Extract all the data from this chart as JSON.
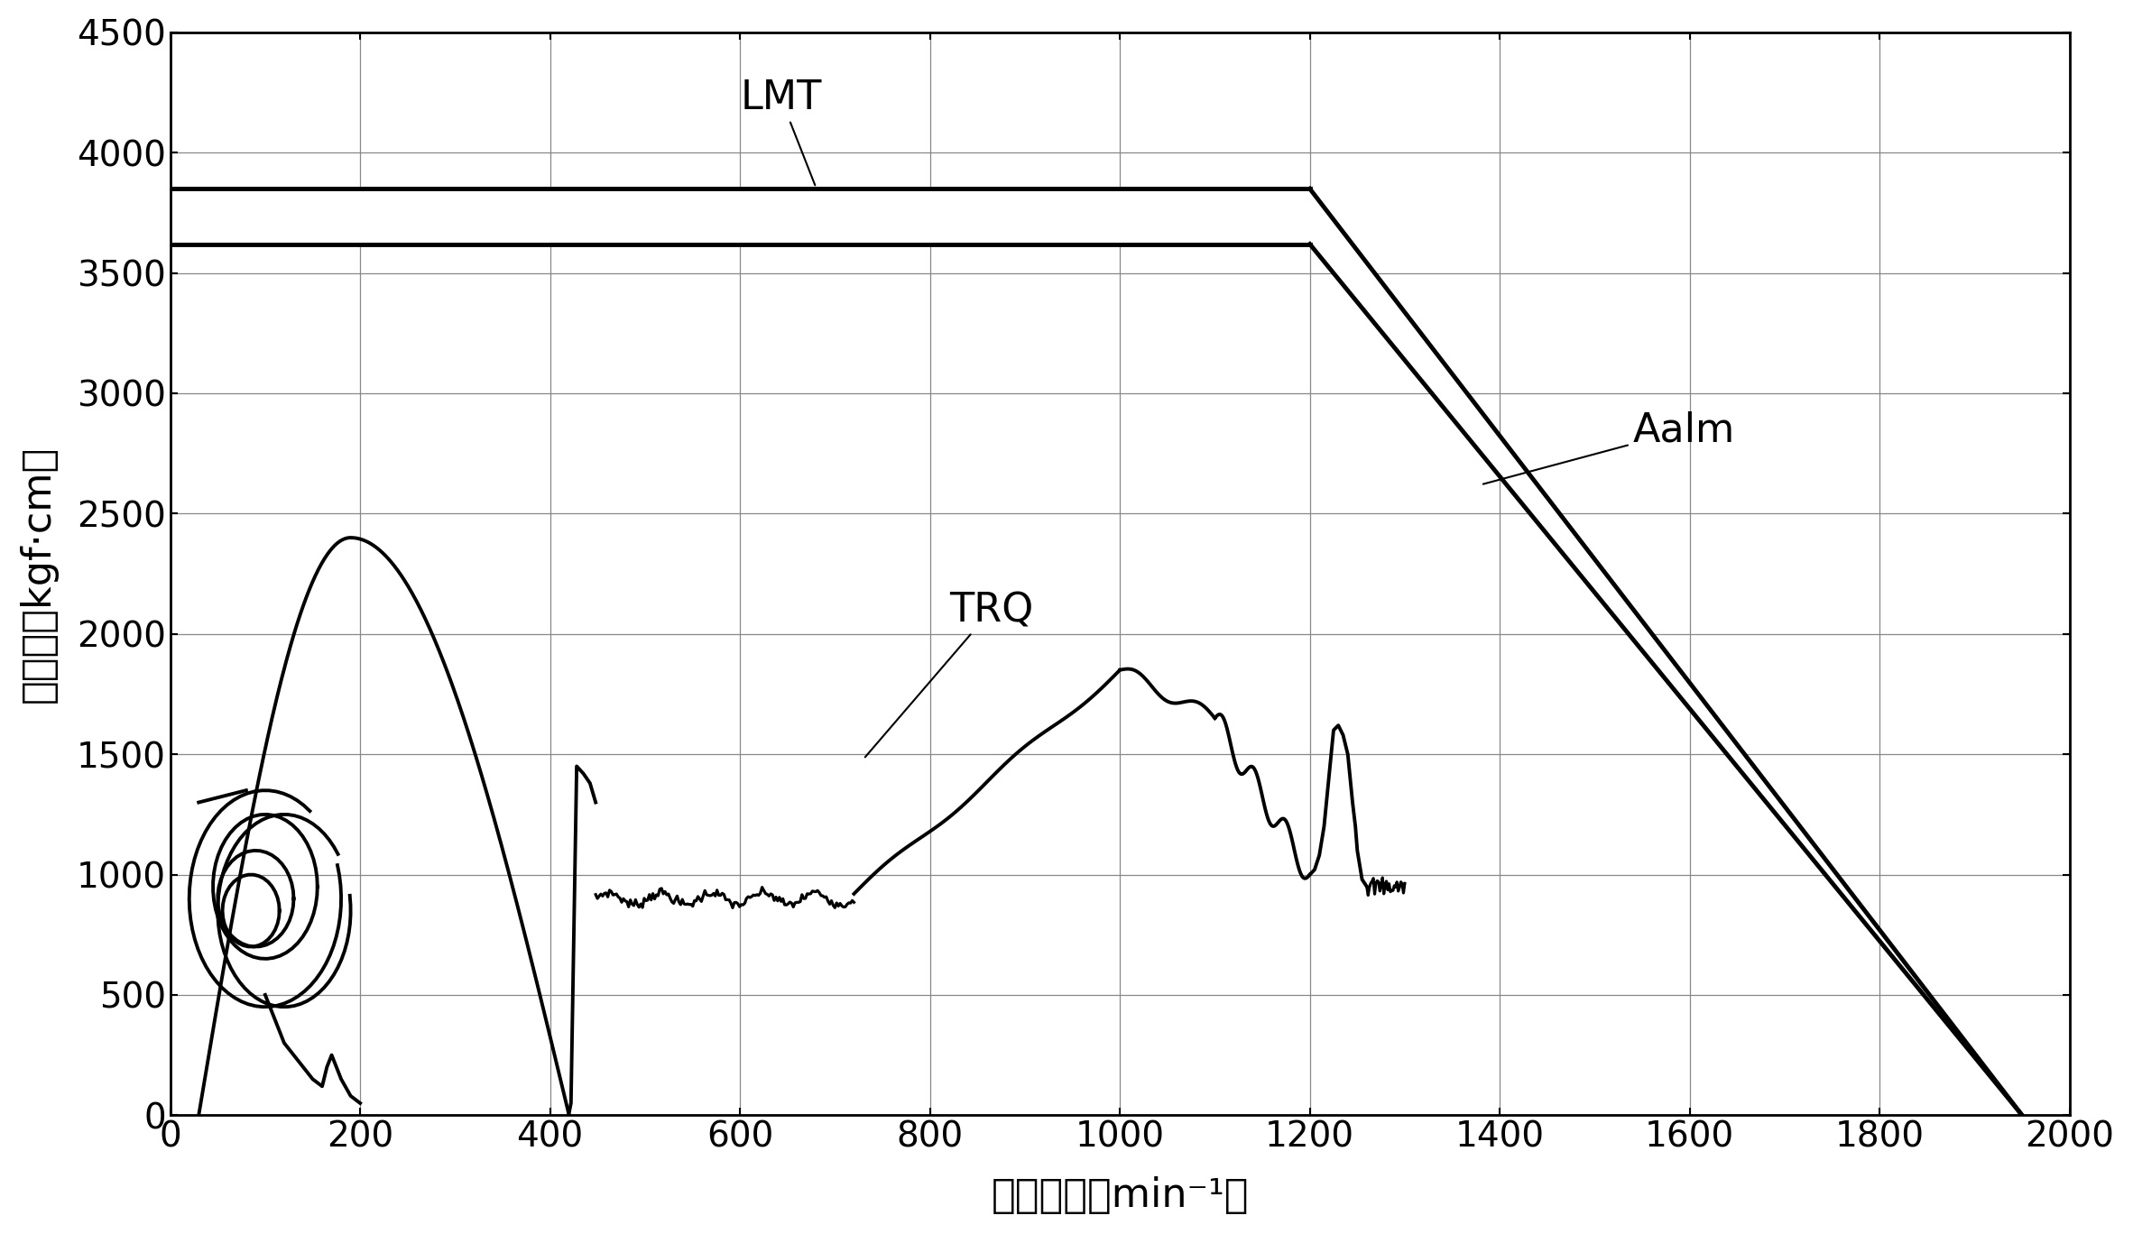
{
  "xlabel": "旋转速度［min⁻¹］",
  "ylabel": "转矩　［kgf·cm］",
  "xlim": [
    0,
    2000
  ],
  "ylim": [
    0,
    4500
  ],
  "xticks": [
    0,
    200,
    400,
    600,
    800,
    1000,
    1200,
    1400,
    1600,
    1800,
    2000
  ],
  "yticks": [
    0,
    500,
    1000,
    1500,
    2000,
    2500,
    3000,
    3500,
    4000,
    4500
  ],
  "lmt_upper": 3850,
  "lmt_lower": 3620,
  "lmt_flat_end": 1200,
  "lmt_slope_end_x": 1950,
  "bg_color": "#ffffff",
  "line_color": "#000000",
  "font_size": 28,
  "label_font_size": 32,
  "tick_font_size": 28,
  "LMT_label": "LMT",
  "TRQ_label": "TRQ",
  "Aalm_label": "Aalm"
}
